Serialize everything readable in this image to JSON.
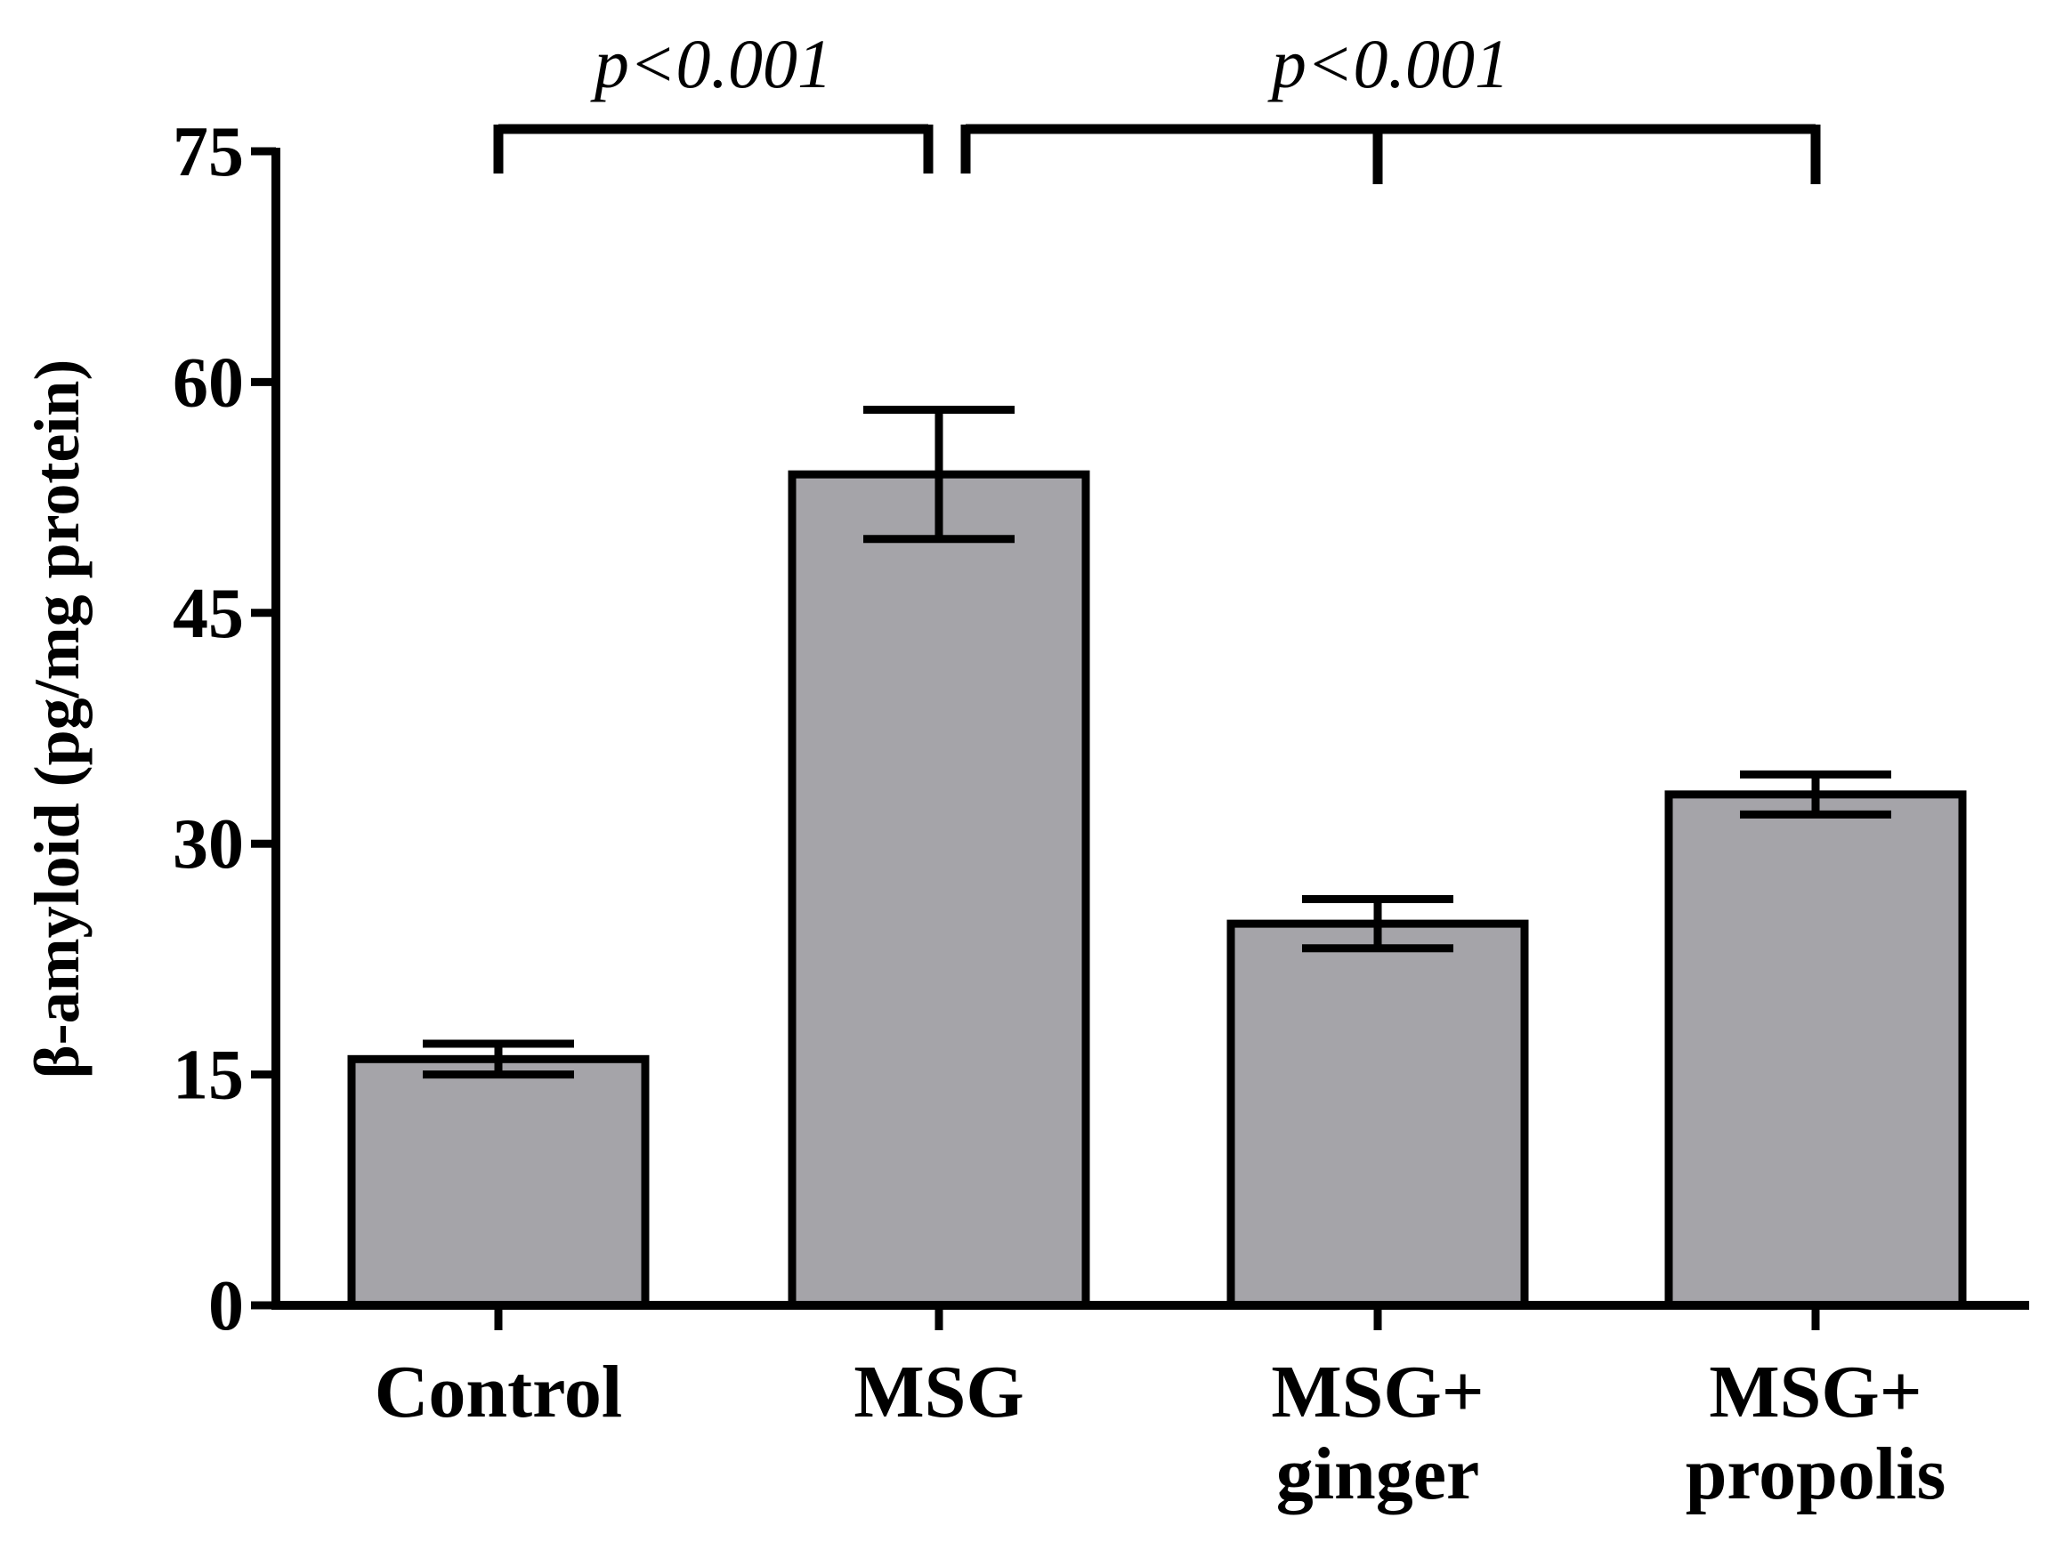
{
  "chart_data": {
    "type": "bar",
    "title": "",
    "xlabel": "",
    "ylabel": "β-amyloid (pg/mg protein)",
    "categories": [
      [
        "Control"
      ],
      [
        "MSG"
      ],
      [
        "MSG+",
        "ginger"
      ],
      [
        "MSG+",
        "propolis"
      ]
    ],
    "values": [
      16,
      54,
      24.8,
      33.2
    ],
    "errors": [
      1.0,
      4.2,
      1.6,
      1.3
    ],
    "ylim": [
      0,
      75
    ],
    "yticks": [
      0,
      15,
      30,
      45,
      60,
      75
    ],
    "grid": false,
    "legend": "none",
    "colors": {
      "bar_fill": "#a5a4a9",
      "stroke": "#000000",
      "background": "#ffffff"
    },
    "annotations": [
      {
        "text": "p<0.001",
        "groups": [
          0,
          1
        ]
      },
      {
        "text": "p<0.001",
        "groups": [
          1,
          2,
          3
        ]
      }
    ]
  }
}
